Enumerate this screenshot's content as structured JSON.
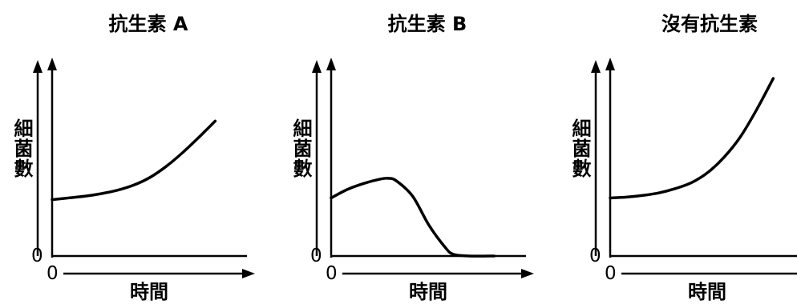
{
  "chart_data": [
    {
      "type": "line",
      "title": "抗生素 A",
      "xlabel": "時間",
      "ylabel": "細菌數",
      "x_origin_label": "0",
      "y_origin_label": "0",
      "series": [
        {
          "x": [
            0,
            1,
            2,
            3,
            4,
            5,
            6,
            7,
            8,
            9,
            10
          ],
          "values": [
            33,
            34,
            35,
            36.5,
            38.5,
            41.5,
            46,
            52.5,
            60.5,
            69.5,
            79
          ]
        }
      ],
      "xlim": [
        0,
        11.5
      ],
      "ylim": [
        0,
        100
      ],
      "grid": false,
      "legend": "none",
      "color": "#000000"
    },
    {
      "type": "line",
      "title": "抗生素 B",
      "xlabel": "時間",
      "ylabel": "細菌數",
      "x_origin_label": "0",
      "y_origin_label": "0",
      "series": [
        {
          "x": [
            0,
            1,
            2,
            3,
            3.5,
            4,
            5,
            6,
            7,
            7.5,
            8.5,
            10
          ],
          "values": [
            34,
            39,
            42.5,
            45,
            45.5,
            44,
            35,
            18,
            5,
            1,
            0,
            0
          ]
        }
      ],
      "xlim": [
        0,
        11.5
      ],
      "ylim": [
        0,
        100
      ],
      "grid": false,
      "legend": "none",
      "color": "#000000"
    },
    {
      "type": "line",
      "title": "沒有抗生素",
      "xlabel": "時間",
      "ylabel": "細菌數",
      "x_origin_label": "0",
      "y_origin_label": "0",
      "series": [
        {
          "x": [
            0,
            1,
            2,
            3,
            4,
            5,
            6,
            7,
            8,
            9,
            10
          ],
          "values": [
            34,
            34.5,
            35.5,
            37,
            39.5,
            43,
            49,
            58,
            70,
            86,
            104
          ]
        }
      ],
      "xlim": [
        0,
        11.5
      ],
      "ylim": [
        0,
        100
      ],
      "grid": false,
      "legend": "none",
      "color": "#000000"
    }
  ]
}
